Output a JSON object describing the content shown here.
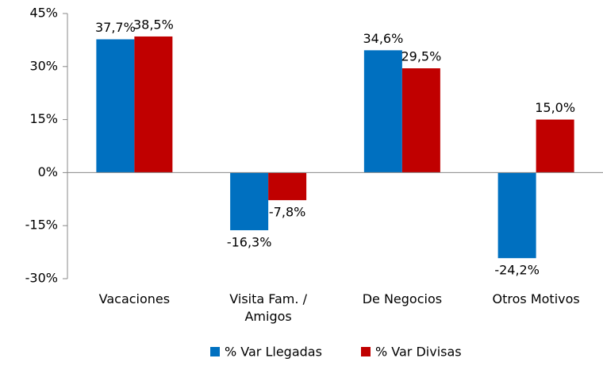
{
  "chart_data": {
    "type": "bar",
    "categories": [
      "Vacaciones",
      "Visita Fam. / Amigos",
      "De Negocios",
      "Otros Motivos"
    ],
    "series": [
      {
        "name": "% Var Llegadas",
        "color": "#0070c0",
        "values": [
          37.7,
          -16.3,
          34.6,
          -24.2
        ],
        "value_labels": [
          "37,7%",
          "-16,3%",
          "34,6%",
          "-24,2%"
        ]
      },
      {
        "name": "% Var Divisas",
        "color": "#c00000",
        "values": [
          38.5,
          -7.8,
          29.5,
          15.0
        ],
        "value_labels": [
          "38,5%",
          "-7,8%",
          "29,5%",
          "15,0%"
        ]
      }
    ],
    "ylim": [
      -30,
      45
    ],
    "yticks": [
      {
        "value": -30,
        "label": "-30%"
      },
      {
        "value": -15,
        "label": "-15%"
      },
      {
        "value": 0,
        "label": "0%"
      },
      {
        "value": 15,
        "label": "15%"
      },
      {
        "value": 30,
        "label": "30%"
      },
      {
        "value": 45,
        "label": "45%"
      }
    ],
    "grid": false,
    "legend": "bottom"
  }
}
